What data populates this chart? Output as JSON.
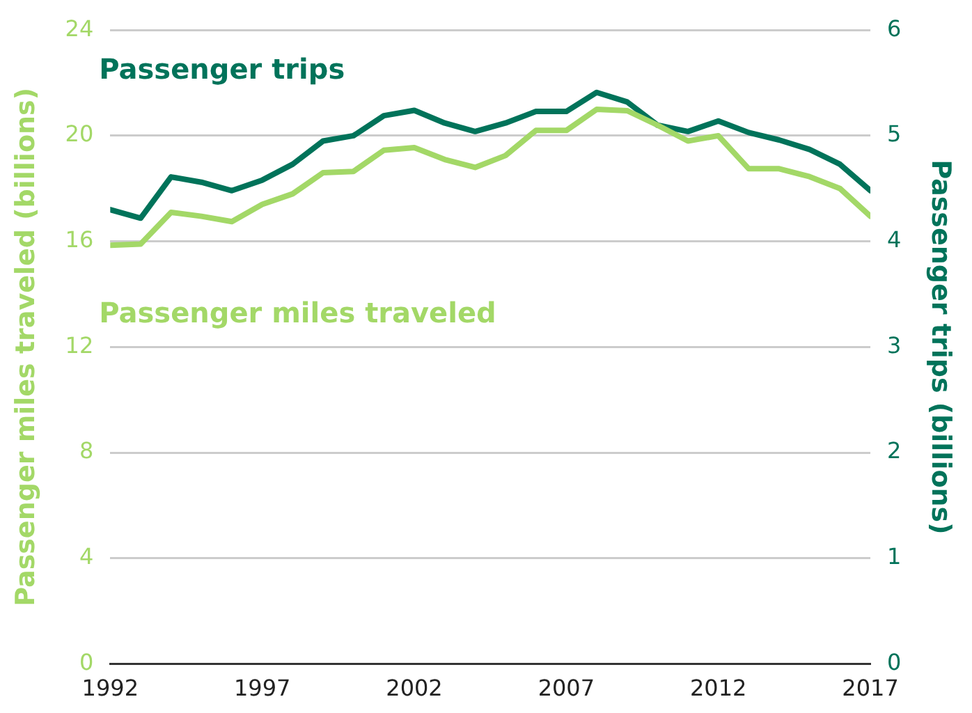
{
  "chart_data": {
    "type": "line",
    "x": [
      1992,
      1993,
      1994,
      1995,
      1996,
      1997,
      1998,
      1999,
      2000,
      2001,
      2002,
      2003,
      2004,
      2005,
      2006,
      2007,
      2008,
      2009,
      2010,
      2011,
      2012,
      2013,
      2014,
      2015,
      2016,
      2017
    ],
    "series": [
      {
        "name": "Passenger miles traveled",
        "color": "#a3d867",
        "axis": "y",
        "values": [
          15.85,
          15.9,
          17.1,
          16.95,
          16.75,
          17.4,
          17.8,
          18.6,
          18.65,
          19.45,
          19.55,
          19.1,
          18.8,
          19.25,
          20.2,
          20.2,
          21.0,
          20.95,
          20.4,
          19.8,
          20.0,
          18.75,
          18.75,
          18.45,
          18.0,
          16.95
        ]
      },
      {
        "name": "Passenger trips",
        "color": "#00735a",
        "axis": "y2",
        "values": [
          4.3,
          4.22,
          4.61,
          4.56,
          4.48,
          4.58,
          4.73,
          4.95,
          5.0,
          5.19,
          5.24,
          5.12,
          5.04,
          5.12,
          5.23,
          5.23,
          5.41,
          5.32,
          5.1,
          5.04,
          5.14,
          5.03,
          4.96,
          4.87,
          4.73,
          4.48
        ]
      }
    ],
    "ylabel": "Passenger miles traveled (billions)",
    "y2label": "Passenger trips (billions)",
    "xlim": [
      1992,
      2017
    ],
    "xticks": [
      1992,
      1997,
      2002,
      2007,
      2012,
      2017
    ],
    "ylim": [
      0,
      24
    ],
    "yticks": [
      0,
      4,
      8,
      12,
      16,
      20,
      24
    ],
    "y2lim": [
      0,
      6
    ],
    "y2ticks": [
      0,
      1,
      2,
      3,
      4,
      5,
      6
    ],
    "grid": "y",
    "marker": "none",
    "line_style": "solid",
    "legend": false
  }
}
